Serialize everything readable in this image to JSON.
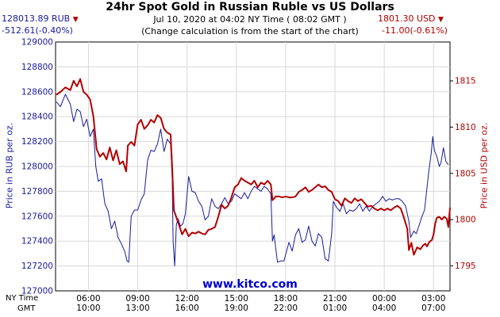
{
  "header": {
    "title": "24hr Spot Gold in Russian Ruble vs US Dollars",
    "timestamp": "Jul 10, 2020 at 04:02 NY Time ( 08:02 GMT )",
    "note": "(Change calculation is from the start of the chart)"
  },
  "left_quote": {
    "price": "128013.89 RUB",
    "change": "-512.61(-0.40%)",
    "arrow": "▼"
  },
  "right_quote": {
    "price": "1801.30 USD",
    "change": "-11.00(-0.61%)",
    "arrow": "▼"
  },
  "footer": {
    "brand": "www.kitco.com",
    "ny_label": "NY Time",
    "gmt_label": "GMT"
  },
  "colors": {
    "rub": "#1a1a9c",
    "usd": "#b30000",
    "grid": "#d8d8d8"
  },
  "chart_data": {
    "type": "line",
    "title": "24hr Spot Gold in Russian Ruble vs US Dollars",
    "ylabel_left": "Price in RUB per oz.",
    "ylabel_right": "Price in USD per oz.",
    "ylim_left": [
      127000,
      129000
    ],
    "ylim_right": [
      1792.3,
      1819.2
    ],
    "yticks_left": [
      "129000",
      "128800",
      "128600",
      "128400",
      "128200",
      "128000",
      "127800",
      "127600",
      "127400",
      "127200",
      "127000"
    ],
    "yticks_right": [
      "1815",
      "1810",
      "1805",
      "1800",
      "1795"
    ],
    "xlim_hours": [
      4,
      28
    ],
    "xticks": [
      {
        "t": 6,
        "ny": "06:00",
        "gmt": "10:00"
      },
      {
        "t": 9,
        "ny": "09:00",
        "gmt": "13:00"
      },
      {
        "t": 12,
        "ny": "12:00",
        "gmt": "16:00"
      },
      {
        "t": 15,
        "ny": "15:00",
        "gmt": "19:00"
      },
      {
        "t": 18,
        "ny": "18:00",
        "gmt": "22:00"
      },
      {
        "t": 21,
        "ny": "21:00",
        "gmt": "01:00"
      },
      {
        "t": 24,
        "ny": "00:00",
        "gmt": "04:00"
      },
      {
        "t": 27,
        "ny": "03:00",
        "gmt": "07:00"
      }
    ],
    "grid": true,
    "series": [
      {
        "name": "RUB",
        "axis": "left",
        "points": [
          [
            4.05,
            128520
          ],
          [
            4.3,
            128480
          ],
          [
            4.6,
            128580
          ],
          [
            4.9,
            128500
          ],
          [
            5.1,
            128360
          ],
          [
            5.3,
            128460
          ],
          [
            5.5,
            128440
          ],
          [
            5.7,
            128320
          ],
          [
            5.9,
            128380
          ],
          [
            6.1,
            128240
          ],
          [
            6.3,
            128300
          ],
          [
            6.45,
            128000
          ],
          [
            6.6,
            127880
          ],
          [
            6.8,
            127900
          ],
          [
            7.0,
            127700
          ],
          [
            7.2,
            127640
          ],
          [
            7.4,
            127500
          ],
          [
            7.6,
            127560
          ],
          [
            7.8,
            127430
          ],
          [
            8.0,
            127380
          ],
          [
            8.2,
            127320
          ],
          [
            8.35,
            127240
          ],
          [
            8.45,
            127230
          ],
          [
            8.6,
            127600
          ],
          [
            8.8,
            127650
          ],
          [
            9.0,
            127650
          ],
          [
            9.2,
            127730
          ],
          [
            9.4,
            127780
          ],
          [
            9.6,
            128050
          ],
          [
            9.8,
            128130
          ],
          [
            10.0,
            128120
          ],
          [
            10.2,
            128180
          ],
          [
            10.4,
            128300
          ],
          [
            10.6,
            128120
          ],
          [
            10.8,
            128220
          ],
          [
            11.0,
            128180
          ],
          [
            11.1,
            127900
          ],
          [
            11.15,
            127400
          ],
          [
            11.25,
            127200
          ],
          [
            11.35,
            127530
          ],
          [
            11.45,
            127580
          ],
          [
            11.6,
            127520
          ],
          [
            11.75,
            127540
          ],
          [
            11.9,
            127620
          ],
          [
            12.1,
            127920
          ],
          [
            12.3,
            127800
          ],
          [
            12.5,
            127790
          ],
          [
            12.7,
            127720
          ],
          [
            12.9,
            127680
          ],
          [
            13.1,
            127570
          ],
          [
            13.3,
            127600
          ],
          [
            13.5,
            127740
          ],
          [
            13.7,
            127680
          ],
          [
            13.9,
            127660
          ],
          [
            14.1,
            127700
          ],
          [
            14.3,
            127750
          ],
          [
            14.5,
            127700
          ],
          [
            14.7,
            127720
          ],
          [
            14.9,
            127780
          ],
          [
            15.1,
            127760
          ],
          [
            15.3,
            127740
          ],
          [
            15.5,
            127790
          ],
          [
            15.7,
            127740
          ],
          [
            15.9,
            127800
          ],
          [
            16.1,
            127840
          ],
          [
            16.3,
            127820
          ],
          [
            16.5,
            127800
          ],
          [
            16.7,
            127840
          ],
          [
            16.9,
            127820
          ],
          [
            17.1,
            127780
          ],
          [
            17.2,
            127400
          ],
          [
            17.3,
            127450
          ],
          [
            17.5,
            127230
          ],
          [
            17.7,
            127240
          ],
          [
            17.9,
            127240
          ],
          [
            18.2,
            127390
          ],
          [
            18.4,
            127320
          ],
          [
            18.6,
            127450
          ],
          [
            18.8,
            127500
          ],
          [
            19.0,
            127390
          ],
          [
            19.2,
            127410
          ],
          [
            19.4,
            127520
          ],
          [
            19.6,
            127400
          ],
          [
            19.8,
            127360
          ],
          [
            20.0,
            127460
          ],
          [
            20.2,
            127430
          ],
          [
            20.4,
            127260
          ],
          [
            20.6,
            127240
          ],
          [
            20.8,
            127460
          ],
          [
            20.9,
            127720
          ],
          [
            21.1,
            127670
          ],
          [
            21.3,
            127640
          ],
          [
            21.5,
            127700
          ],
          [
            21.7,
            127620
          ],
          [
            21.9,
            127650
          ],
          [
            22.1,
            127640
          ],
          [
            22.3,
            127660
          ],
          [
            22.5,
            127700
          ],
          [
            22.7,
            127640
          ],
          [
            22.9,
            127680
          ],
          [
            23.1,
            127640
          ],
          [
            23.3,
            127680
          ],
          [
            23.5,
            127700
          ],
          [
            23.7,
            127720
          ],
          [
            23.9,
            127760
          ],
          [
            24.1,
            127720
          ],
          [
            24.3,
            127740
          ],
          [
            24.5,
            127730
          ],
          [
            24.7,
            127740
          ],
          [
            24.9,
            127740
          ],
          [
            25.1,
            127720
          ],
          [
            25.3,
            127680
          ],
          [
            25.5,
            127560
          ],
          [
            25.6,
            127430
          ],
          [
            25.8,
            127480
          ],
          [
            25.95,
            127460
          ],
          [
            26.1,
            127520
          ],
          [
            26.3,
            127600
          ],
          [
            26.45,
            127650
          ],
          [
            26.55,
            127770
          ],
          [
            26.7,
            127950
          ],
          [
            26.85,
            128100
          ],
          [
            26.95,
            128240
          ],
          [
            27.05,
            128130
          ],
          [
            27.2,
            128080
          ],
          [
            27.35,
            128000
          ],
          [
            27.45,
            128030
          ],
          [
            27.6,
            128150
          ],
          [
            27.75,
            128040
          ],
          [
            27.9,
            128014
          ]
        ]
      },
      {
        "name": "USD",
        "axis": "right",
        "points": [
          [
            4.05,
            1813.5
          ],
          [
            4.3,
            1813.8
          ],
          [
            4.6,
            1814.3
          ],
          [
            4.9,
            1814.0
          ],
          [
            5.1,
            1815.0
          ],
          [
            5.3,
            1814.4
          ],
          [
            5.5,
            1815.2
          ],
          [
            5.7,
            1813.8
          ],
          [
            5.9,
            1813.5
          ],
          [
            6.1,
            1813.0
          ],
          [
            6.3,
            1811.2
          ],
          [
            6.5,
            1807.6
          ],
          [
            6.7,
            1806.8
          ],
          [
            6.9,
            1807.2
          ],
          [
            7.1,
            1806.5
          ],
          [
            7.3,
            1807.8
          ],
          [
            7.5,
            1806.4
          ],
          [
            7.7,
            1807.5
          ],
          [
            7.9,
            1806.0
          ],
          [
            8.1,
            1806.3
          ],
          [
            8.3,
            1805.2
          ],
          [
            8.4,
            1808.0
          ],
          [
            8.6,
            1808.4
          ],
          [
            8.8,
            1808.0
          ],
          [
            9.0,
            1810.3
          ],
          [
            9.2,
            1810.8
          ],
          [
            9.4,
            1809.8
          ],
          [
            9.6,
            1810.2
          ],
          [
            9.8,
            1810.8
          ],
          [
            10.0,
            1810.5
          ],
          [
            10.2,
            1811.3
          ],
          [
            10.4,
            1811.0
          ],
          [
            10.6,
            1809.8
          ],
          [
            10.8,
            1809.4
          ],
          [
            11.0,
            1809.2
          ],
          [
            11.1,
            1805.5
          ],
          [
            11.2,
            1801.0
          ],
          [
            11.3,
            1800.5
          ],
          [
            11.5,
            1799.5
          ],
          [
            11.7,
            1798.4
          ],
          [
            11.9,
            1799.0
          ],
          [
            12.1,
            1798.2
          ],
          [
            12.3,
            1798.6
          ],
          [
            12.5,
            1798.5
          ],
          [
            12.7,
            1798.7
          ],
          [
            12.9,
            1798.5
          ],
          [
            13.1,
            1798.4
          ],
          [
            13.3,
            1798.9
          ],
          [
            13.5,
            1799.0
          ],
          [
            13.7,
            1799.2
          ],
          [
            13.9,
            1800.3
          ],
          [
            14.1,
            1801.6
          ],
          [
            14.3,
            1801.2
          ],
          [
            14.5,
            1801.5
          ],
          [
            14.7,
            1802.4
          ],
          [
            14.9,
            1803.5
          ],
          [
            15.1,
            1803.8
          ],
          [
            15.3,
            1804.5
          ],
          [
            15.5,
            1804.2
          ],
          [
            15.7,
            1804.0
          ],
          [
            15.9,
            1803.8
          ],
          [
            16.1,
            1804.2
          ],
          [
            16.3,
            1803.5
          ],
          [
            16.5,
            1804.0
          ],
          [
            16.7,
            1803.8
          ],
          [
            16.9,
            1804.2
          ],
          [
            17.1,
            1803.8
          ],
          [
            17.2,
            1802.1
          ],
          [
            17.4,
            1802.5
          ],
          [
            17.6,
            1802.5
          ],
          [
            17.8,
            1802.4
          ],
          [
            18.0,
            1802.5
          ],
          [
            18.2,
            1802.4
          ],
          [
            18.4,
            1802.4
          ],
          [
            18.6,
            1802.5
          ],
          [
            18.8,
            1803.0
          ],
          [
            19.0,
            1803.2
          ],
          [
            19.2,
            1803.5
          ],
          [
            19.4,
            1803.0
          ],
          [
            19.6,
            1803.2
          ],
          [
            19.8,
            1803.5
          ],
          [
            20.0,
            1803.8
          ],
          [
            20.2,
            1803.5
          ],
          [
            20.4,
            1803.6
          ],
          [
            20.6,
            1803.2
          ],
          [
            20.8,
            1803.0
          ],
          [
            21.0,
            1802.2
          ],
          [
            21.2,
            1802.0
          ],
          [
            21.4,
            1801.5
          ],
          [
            21.6,
            1802.3
          ],
          [
            21.8,
            1802.0
          ],
          [
            22.0,
            1801.8
          ],
          [
            22.2,
            1802.3
          ],
          [
            22.4,
            1802.0
          ],
          [
            22.6,
            1802.2
          ],
          [
            22.8,
            1801.8
          ],
          [
            23.0,
            1801.4
          ],
          [
            23.2,
            1801.5
          ],
          [
            23.4,
            1801.2
          ],
          [
            23.6,
            1801.0
          ],
          [
            23.8,
            1801.2
          ],
          [
            24.0,
            1801.0
          ],
          [
            24.2,
            1801.2
          ],
          [
            24.4,
            1801.0
          ],
          [
            24.6,
            1801.3
          ],
          [
            24.8,
            1801.5
          ],
          [
            25.0,
            1801.2
          ],
          [
            25.2,
            1800.2
          ],
          [
            25.4,
            1799.0
          ],
          [
            25.5,
            1796.7
          ],
          [
            25.65,
            1797.5
          ],
          [
            25.8,
            1796.2
          ],
          [
            26.0,
            1797.0
          ],
          [
            26.2,
            1796.8
          ],
          [
            26.35,
            1797.2
          ],
          [
            26.5,
            1797.4
          ],
          [
            26.6,
            1797.1
          ],
          [
            26.75,
            1797.6
          ],
          [
            26.9,
            1797.8
          ],
          [
            27.0,
            1798.4
          ],
          [
            27.1,
            1799.6
          ],
          [
            27.2,
            1800.2
          ],
          [
            27.35,
            1800.3
          ],
          [
            27.5,
            1800.0
          ],
          [
            27.65,
            1800.3
          ],
          [
            27.8,
            1800.1
          ],
          [
            27.9,
            1799.2
          ],
          [
            28.0,
            1801.3
          ]
        ]
      }
    ]
  }
}
